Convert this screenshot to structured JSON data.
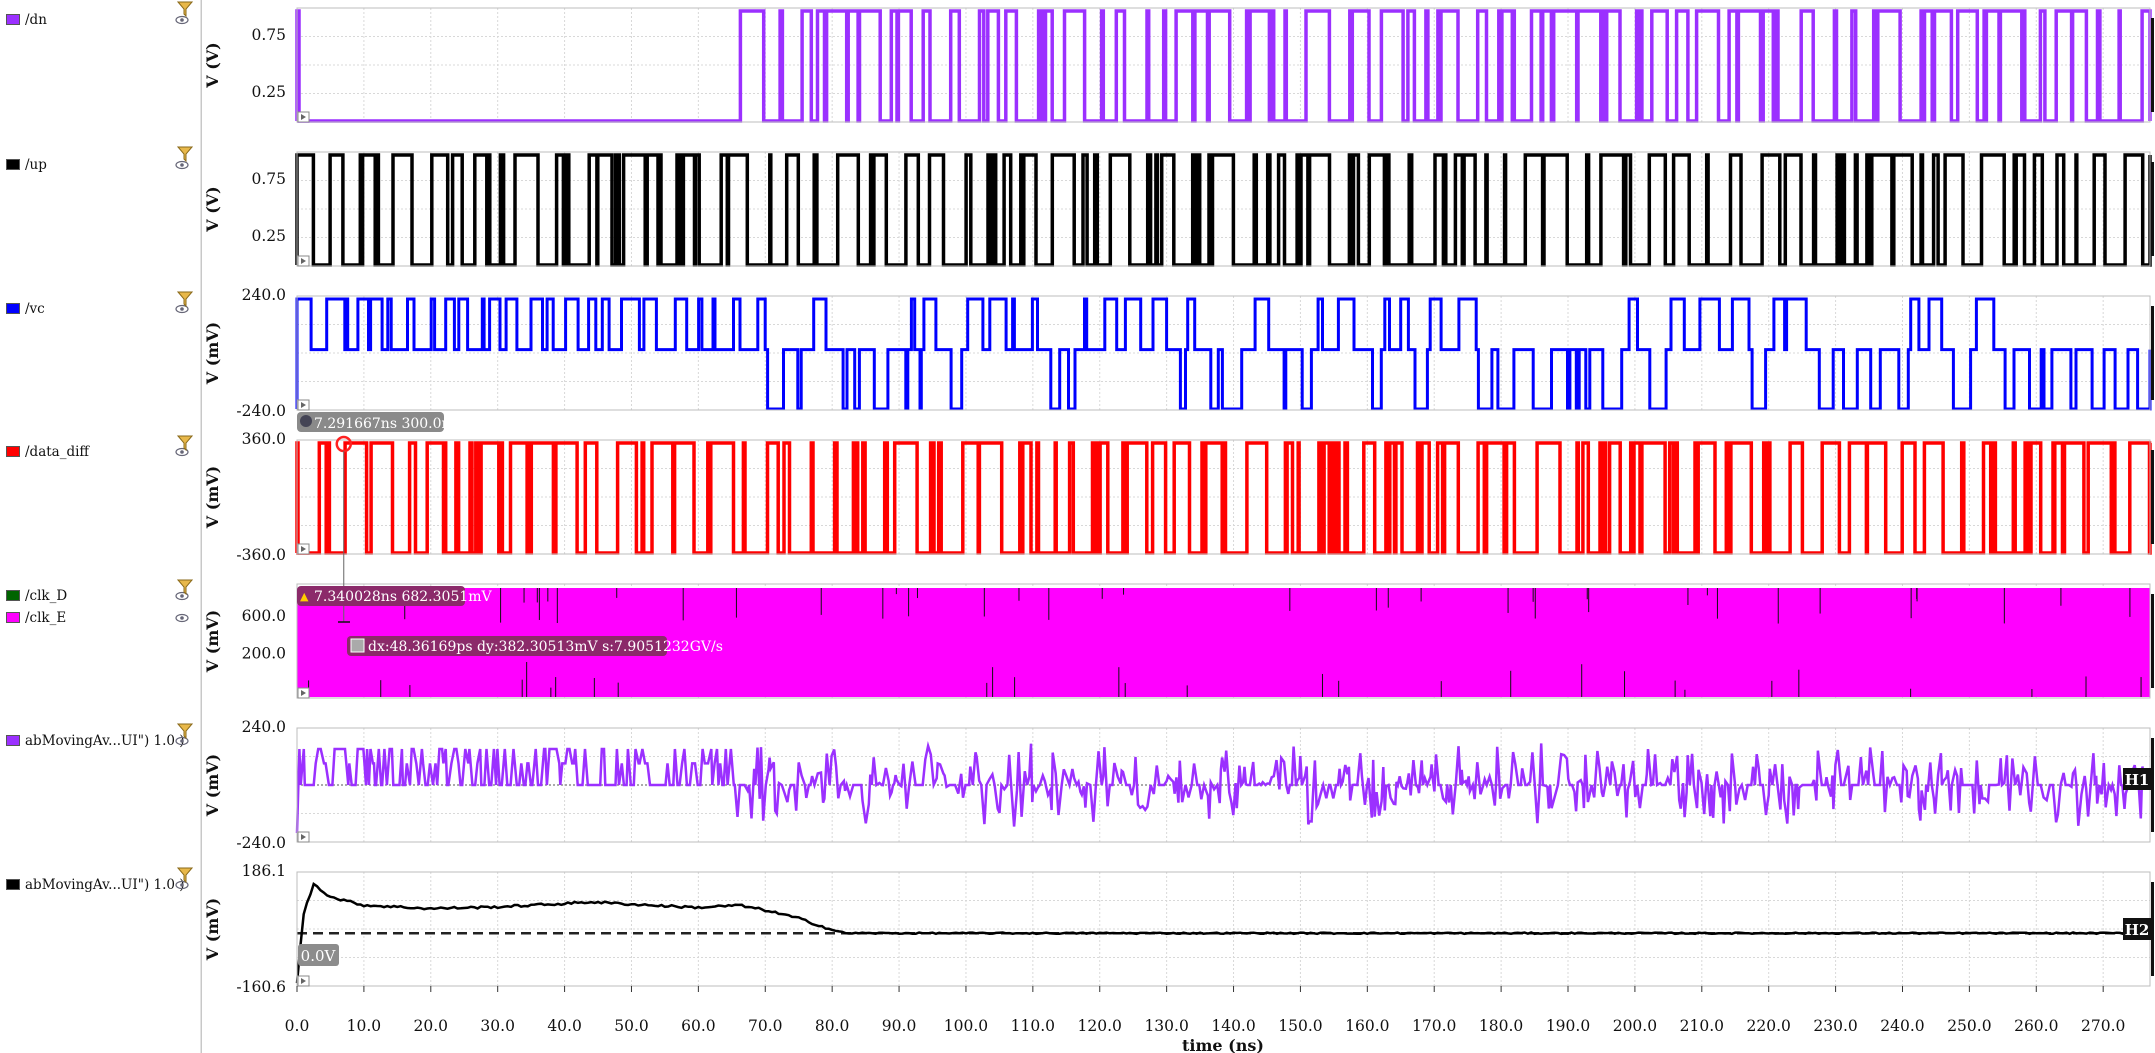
{
  "strips": [
    {
      "id": "dn",
      "signals": [
        {
          "name": "/dn",
          "color": "#9b30ff"
        }
      ],
      "ylabel": "V (V)",
      "yticks": [
        "0.75",
        "0.25"
      ],
      "kind": "digital",
      "start": 65.0,
      "density": 0.8
    },
    {
      "id": "up",
      "signals": [
        {
          "name": "/up",
          "color": "#000000"
        }
      ],
      "ylabel": "V (V)",
      "yticks": [
        "0.75",
        "0.25"
      ],
      "kind": "digital",
      "start": 0.4,
      "density": 0.55
    },
    {
      "id": "vc",
      "signals": [
        {
          "name": "/vc",
          "color": "#0000ff"
        }
      ],
      "ylabel": "V (mV)",
      "yticks": [
        "240.0",
        "-240.0"
      ],
      "kind": "tri",
      "start": 0.4,
      "density": 0.6
    },
    {
      "id": "data_diff",
      "signals": [
        {
          "name": "/data_diff",
          "color": "#ff0000"
        }
      ],
      "ylabel": "V (mV)",
      "yticks": [
        "360.0",
        "-360.0"
      ],
      "kind": "digital",
      "start": 0.4,
      "density": 0.75
    },
    {
      "id": "clk",
      "signals": [
        {
          "name": "/clk_D",
          "color": "#006400"
        },
        {
          "name": "/clk_E",
          "color": "#ff00ff"
        }
      ],
      "ylabel": "V (mV)",
      "yticks": [
        "600.0",
        "200.0"
      ],
      "kind": "fill"
    },
    {
      "id": "mavg1",
      "signals": [
        {
          "name": "abMovingAv...UI\") 1.0 )",
          "color": "#9b30ff"
        }
      ],
      "ylabel": "V (mV)",
      "yticks": [
        "240.0",
        "-240.0"
      ],
      "kind": "analog",
      "marker": "H1"
    },
    {
      "id": "mavg2",
      "signals": [
        {
          "name": "abMovingAv...UI\") 1.0 )",
          "color": "#000000"
        }
      ],
      "ylabel": "V (mV)",
      "yticks": [
        "186.1",
        "-160.6"
      ],
      "kind": "smooth",
      "marker": "H2"
    }
  ],
  "xaxis": {
    "label": "time (ns)",
    "ticks": [
      "0.0",
      "10.0",
      "20.0",
      "30.0",
      "40.0",
      "50.0",
      "60.0",
      "70.0",
      "80.0",
      "90.0",
      "100.0",
      "110.0",
      "120.0",
      "130.0",
      "140.0",
      "150.0",
      "160.0",
      "170.0",
      "180.0",
      "190.0",
      "200.0",
      "210.0",
      "220.0",
      "230.0",
      "240.0",
      "250.0",
      "260.0",
      "270.0"
    ]
  },
  "annotations": {
    "marker_point": "7.291667ns 300.0mV",
    "marker_a": "7.340028ns 682.3051mV",
    "delta": "dx:48.36169ps dy:382.30513mV s:7.9051232GV/s",
    "zero_label": "0.0V"
  },
  "chart_data": {
    "type": "line",
    "title": "",
    "xlabel": "time (ns)",
    "xlim": [
      0,
      277
    ],
    "series": [
      {
        "name": "/dn",
        "ylabel": "V (V)",
        "description_values": {
          "low_before_ns": 65,
          "levels": [
            0.1,
            0.9
          ]
        }
      },
      {
        "name": "/up",
        "ylabel": "V (V)",
        "levels": [
          0.1,
          0.9
        ]
      },
      {
        "name": "/vc",
        "ylabel": "V (mV)",
        "ylim": [
          -240,
          240
        ]
      },
      {
        "name": "/data_diff",
        "ylabel": "V (mV)",
        "ylim": [
          -360,
          360
        ]
      },
      {
        "name": "/clk_D",
        "ylabel": "V (mV)"
      },
      {
        "name": "/clk_E",
        "ylabel": "V (mV)"
      },
      {
        "name": "abMovingAv...UI\") 1.0 )",
        "ylabel": "V (mV)",
        "ylim": [
          -240,
          240
        ]
      },
      {
        "name": "abMovingAv...UI\") 1.0 )",
        "ylabel": "V (mV)",
        "ylim": [
          -160.6,
          186.1
        ],
        "x": [
          0,
          1,
          2.5,
          5,
          10,
          20,
          30,
          40,
          44,
          50,
          60,
          66,
          70,
          75,
          80,
          82,
          100,
          150,
          200,
          250,
          277
        ],
        "y": [
          -150,
          60,
          150,
          110,
          85,
          75,
          80,
          90,
          95,
          88,
          78,
          85,
          70,
          45,
          10,
          0,
          0,
          0,
          0,
          0,
          0
        ]
      }
    ]
  }
}
